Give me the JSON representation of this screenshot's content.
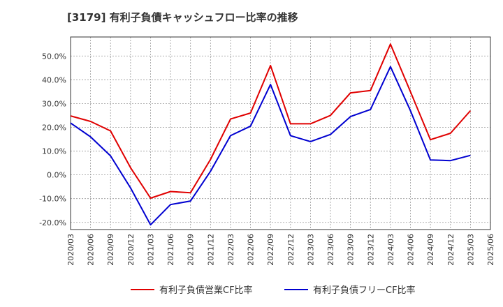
{
  "chart_data": {
    "type": "line",
    "title": "[3179]  有利子負債キャッシュフロー比率の推移",
    "xlabel": "",
    "ylabel": "",
    "ylim": [
      -23,
      58
    ],
    "yticks": [
      -20,
      -10,
      0,
      10,
      20,
      30,
      40,
      50
    ],
    "ytick_labels": [
      "-20.0%",
      "-10.0%",
      "0.0%",
      "10.0%",
      "20.0%",
      "30.0%",
      "40.0%",
      "50.0%"
    ],
    "grid": true,
    "legend_position": "bottom",
    "x_ticks": [
      "2020/03",
      "2020/06",
      "2020/09",
      "2020/12",
      "2021/03",
      "2021/06",
      "2021/09",
      "2021/12",
      "2022/03",
      "2022/06",
      "2022/09",
      "2022/12",
      "2023/03",
      "2023/06",
      "2023/09",
      "2023/12",
      "2024/03",
      "2024/06",
      "2024/09",
      "2024/12",
      "2025/03",
      "2025/06"
    ],
    "x": [
      "2020/03",
      "2020/06",
      "2020/09",
      "2020/12",
      "2021/03",
      "2021/06",
      "2021/09",
      "2021/12",
      "2022/03",
      "2022/06",
      "2022/09",
      "2022/12",
      "2023/03",
      "2023/06",
      "2023/09",
      "2023/12",
      "2024/03",
      "2024/06",
      "2024/09",
      "2024/12",
      "2025/03"
    ],
    "series": [
      {
        "name": "有利子負債営業CF比率",
        "color": "#e00000",
        "values": [
          24.8,
          22.5,
          18.5,
          3.0,
          -9.8,
          -7.0,
          -7.5,
          6.5,
          23.5,
          26.0,
          46.0,
          21.5,
          21.5,
          25.0,
          34.5,
          35.5,
          55.0,
          35.0,
          14.8,
          17.5,
          27.0
        ]
      },
      {
        "name": "有利子負債フリーCF比率",
        "color": "#0000d0",
        "values": [
          21.8,
          16.0,
          8.0,
          -5.5,
          -21.0,
          -12.5,
          -11.0,
          1.5,
          16.5,
          20.5,
          38.0,
          16.5,
          14.0,
          17.0,
          24.5,
          27.5,
          45.5,
          27.0,
          6.3,
          6.0,
          8.2
        ]
      }
    ]
  }
}
